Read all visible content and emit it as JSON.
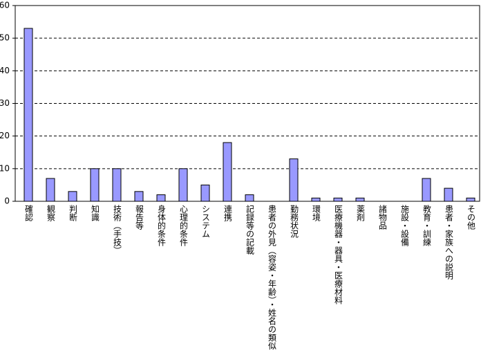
{
  "chart_data": {
    "type": "bar",
    "categories": [
      "確認",
      "観察",
      "判断",
      "知識",
      "技術（手技）",
      "報告等",
      "身体的条件",
      "心理的条件",
      "システム",
      "連携",
      "記録等の記載",
      "患者の外見（容姿・年齢）・姓名の類似",
      "勤務状況",
      "環境",
      "医療機器・器具・医療材料",
      "薬剤",
      "諸物品",
      "施設・設備",
      "教育・訓練",
      "患者・家族への説明",
      "その他"
    ],
    "values": [
      53,
      7,
      3,
      10,
      10,
      3,
      2,
      10,
      5,
      18,
      2,
      0,
      13,
      1,
      1,
      1,
      0,
      0,
      7,
      4,
      1
    ],
    "color": "#9999ff",
    "ylim": [
      0,
      60
    ],
    "yticks": [
      0,
      10,
      20,
      30,
      40,
      50,
      60
    ],
    "grid": true
  }
}
